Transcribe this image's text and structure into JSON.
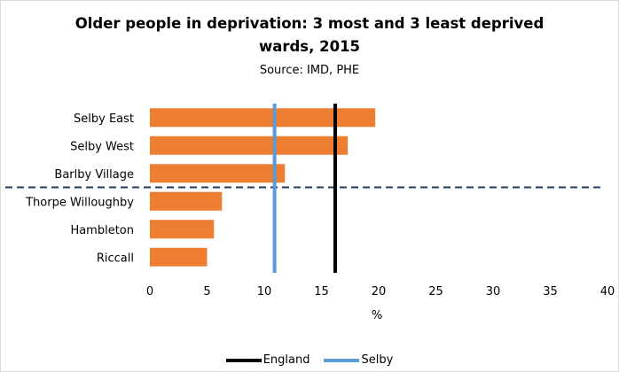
{
  "chart_data": {
    "type": "bar",
    "orientation": "horizontal",
    "title_lines": [
      "Older people in deprivation: 3 most and 3 least deprived",
      "wards, 2015"
    ],
    "subtitle": "Source: IMD, PHE",
    "xlabel": "%",
    "ylabel": "",
    "xlim": [
      0,
      40
    ],
    "xticks": [
      0,
      5,
      10,
      15,
      20,
      25,
      30,
      35,
      40
    ],
    "grid": false,
    "categories": [
      "Selby East",
      "Selby West",
      "Barlby Village",
      "Thorpe Willoughby",
      "Hambleton",
      "Riccall"
    ],
    "values": [
      19.7,
      17.3,
      11.8,
      6.3,
      5.6,
      5.0
    ],
    "bar_color": "#ED7D31",
    "reference_lines": [
      {
        "name": "England",
        "value": 16.2,
        "color": "#000000"
      },
      {
        "name": "Selby",
        "value": 10.9,
        "color": "#5B9BD5"
      }
    ],
    "divider_color": "#1F3864",
    "legend_position": "bottom"
  }
}
